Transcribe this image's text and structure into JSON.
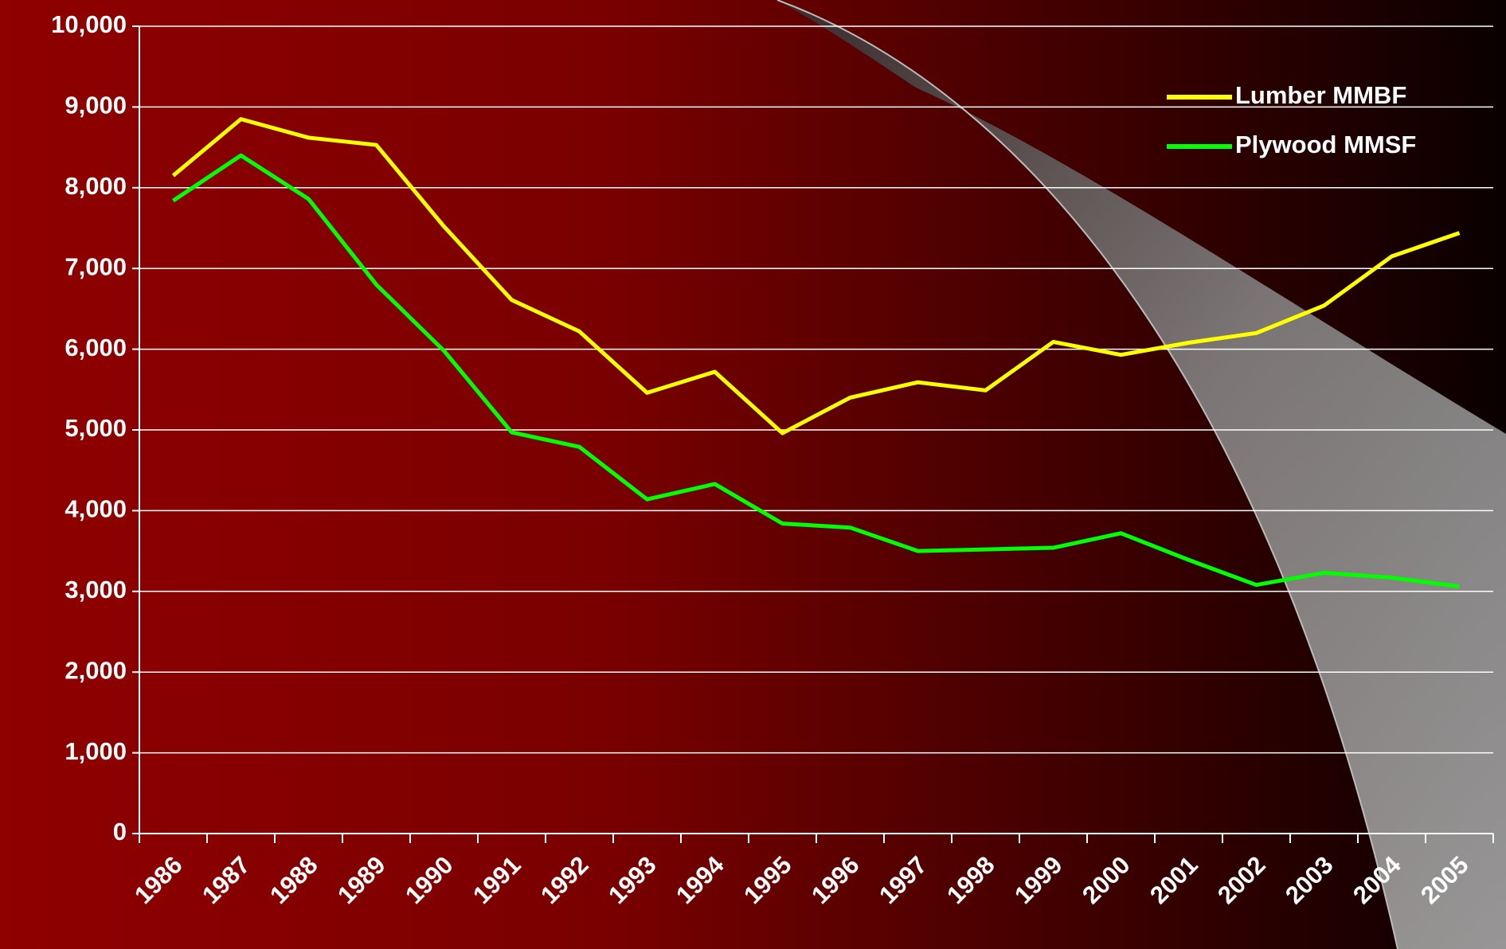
{
  "chart_data": {
    "type": "line",
    "categories": [
      "1986",
      "1987",
      "1988",
      "1989",
      "1990",
      "1991",
      "1992",
      "1993",
      "1994",
      "1995",
      "1996",
      "1997",
      "1998",
      "1999",
      "2000",
      "2001",
      "2002",
      "2003",
      "2004",
      "2005"
    ],
    "series": [
      {
        "name": "Lumber MMBF",
        "color": "#ffff00",
        "values": [
          8150,
          8850,
          8620,
          8530,
          7520,
          6610,
          6220,
          5460,
          5720,
          4960,
          5400,
          5590,
          5490,
          6090,
          5930,
          6080,
          6200,
          6540,
          7150,
          7440
        ]
      },
      {
        "name": "Plywood MMSF",
        "color": "#00ff00",
        "values": [
          7840,
          8400,
          7860,
          6800,
          5980,
          4970,
          4790,
          4140,
          4330,
          3840,
          3790,
          3500,
          3520,
          3540,
          3720,
          3390,
          3080,
          3230,
          3170,
          3060
        ]
      }
    ],
    "ylim": [
      0,
      10000
    ],
    "yticks": [
      0,
      {
        "value": 1000,
        "label": "1,000"
      },
      {
        "value": 2000,
        "label": "2,000"
      },
      {
        "value": 3000,
        "label": "3,000"
      },
      {
        "value": 4000,
        "label": "4,000"
      },
      {
        "value": 5000,
        "label": "5,000"
      },
      {
        "value": 6000,
        "label": "6,000"
      },
      {
        "value": 7000,
        "label": "7,000"
      },
      {
        "value": 8000,
        "label": "8,000"
      },
      {
        "value": 9000,
        "label": "9,000"
      },
      {
        "value": 10000,
        "label": "10,000"
      }
    ],
    "grid": true,
    "legend": "upper right"
  }
}
